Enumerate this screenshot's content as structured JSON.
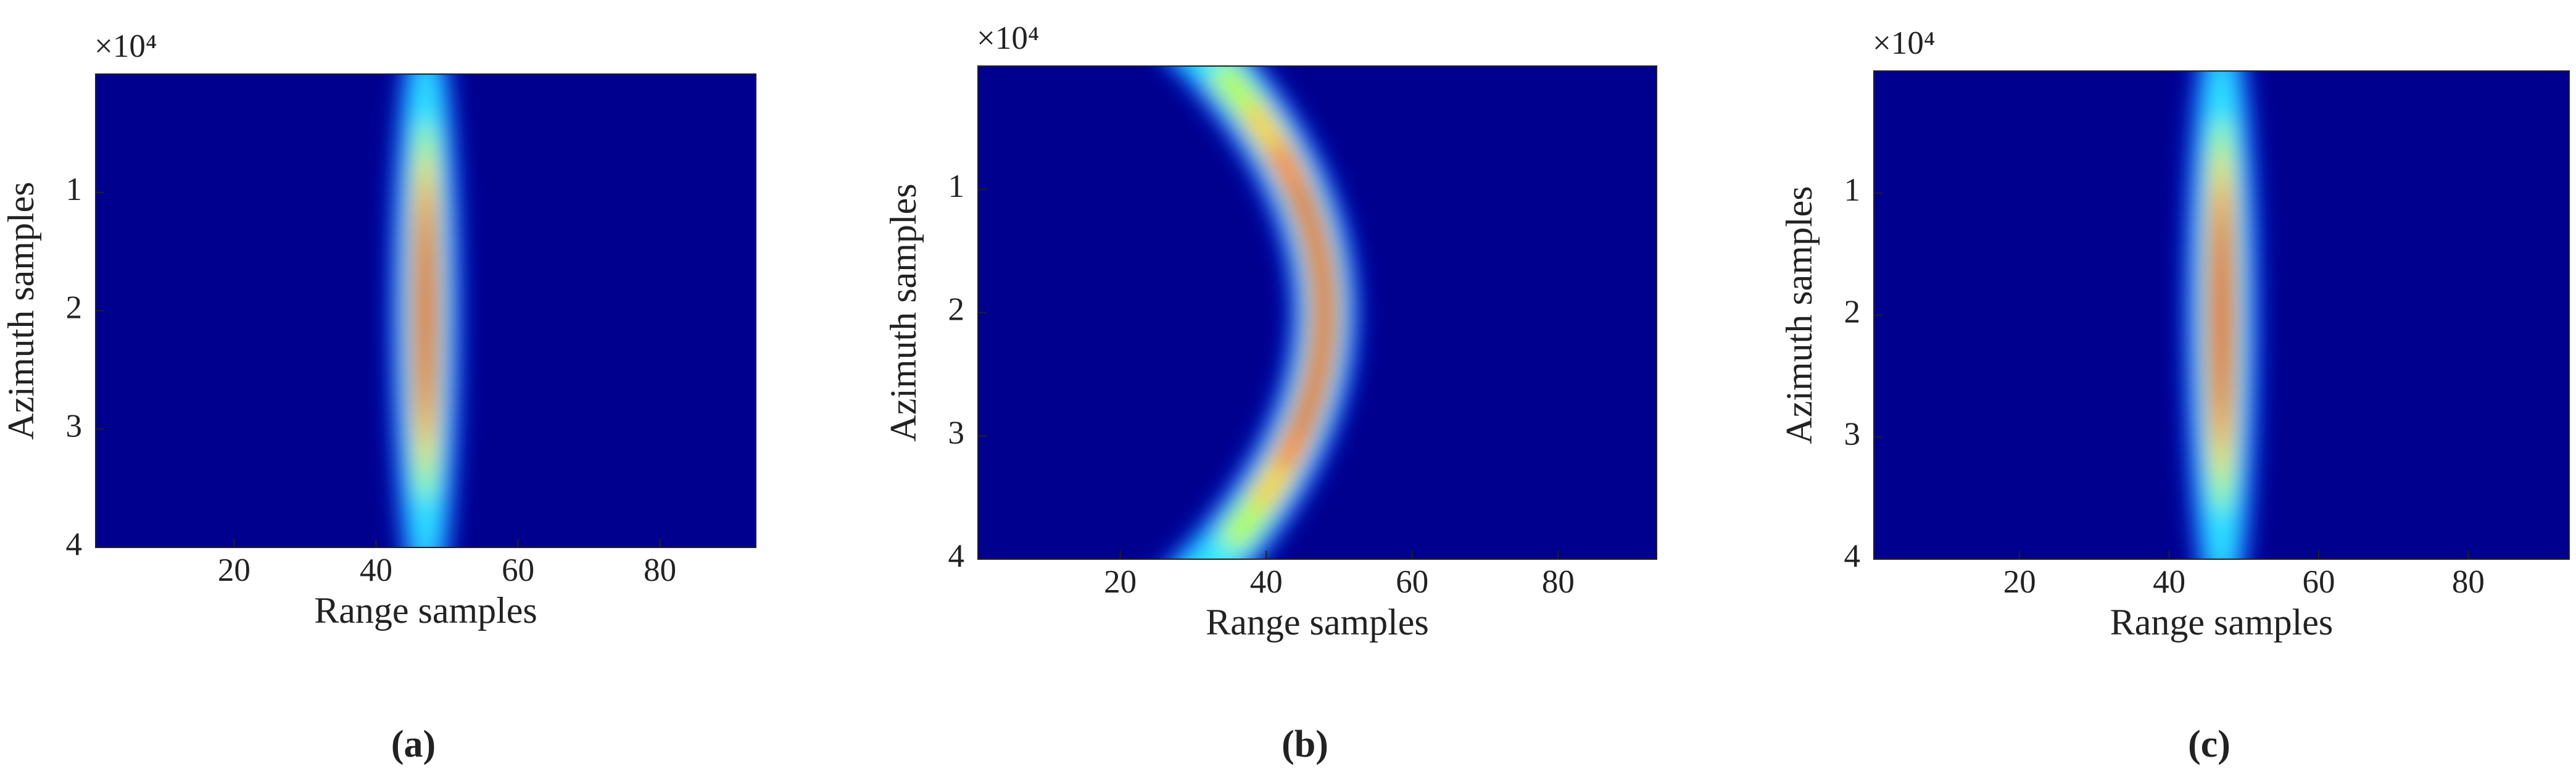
{
  "chart_data": [
    {
      "type": "heatmap",
      "xlabel": "Range samples",
      "ylabel": "Azimuth samples",
      "y_offset_label": "×10⁴",
      "xlim": [
        0.5,
        93.5
      ],
      "ylim": [
        0,
        4
      ],
      "xticks": [
        20,
        40,
        60,
        80
      ],
      "yticks": [
        1,
        2,
        3,
        4
      ],
      "caption": "(a)",
      "shape": "straight"
    },
    {
      "type": "heatmap",
      "xlabel": "Range samples",
      "ylabel": "Azimuth samples",
      "y_offset_label": "×10⁴",
      "xlim": [
        0.5,
        93.5
      ],
      "ylim": [
        0,
        4
      ],
      "xticks": [
        20,
        40,
        60,
        80
      ],
      "yticks": [
        1,
        2,
        3,
        4
      ],
      "caption": "(b)",
      "shape": "curved"
    },
    {
      "type": "heatmap",
      "xlabel": "Range samples",
      "ylabel": "Azimuth samples",
      "y_offset_label": "×10⁴",
      "xlim": [
        0.5,
        93.5
      ],
      "ylim": [
        0,
        4
      ],
      "xticks": [
        20,
        40,
        60,
        80
      ],
      "yticks": [
        1,
        2,
        3,
        4
      ],
      "caption": "(c)",
      "shape": "straight"
    }
  ]
}
